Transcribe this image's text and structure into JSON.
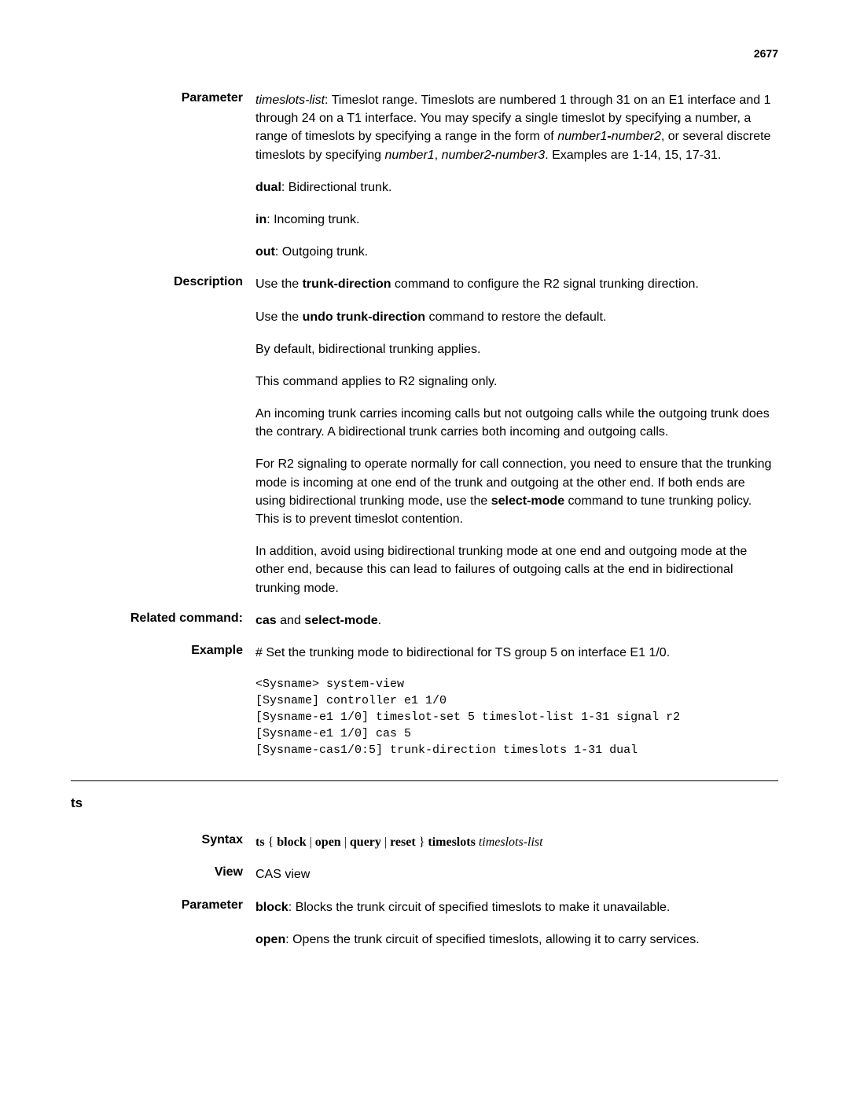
{
  "pageNumber": "2677",
  "sections": [
    {
      "label": "Parameter",
      "paragraphs": [
        {
          "runs": [
            {
              "t": "timeslots-list",
              "i": true
            },
            {
              "t": ": Timeslot range. Timeslots are numbered 1 through 31 on an E1 interface and 1 through 24 on a T1 interface. You may specify a single timeslot by specifying a number, a range of timeslots by specifying a range in the form of "
            },
            {
              "t": "number1",
              "i": true
            },
            {
              "t": "-",
              "b": true
            },
            {
              "t": "number2",
              "i": true
            },
            {
              "t": ", or several discrete timeslots by specifying "
            },
            {
              "t": "number1",
              "i": true
            },
            {
              "t": ", "
            },
            {
              "t": "number2",
              "i": true
            },
            {
              "t": "-",
              "b": true
            },
            {
              "t": "number3",
              "i": true
            },
            {
              "t": ". Examples are 1-14, 15, 17-31."
            }
          ]
        },
        {
          "runs": [
            {
              "t": "dual",
              "b": true
            },
            {
              "t": ": Bidirectional trunk."
            }
          ]
        },
        {
          "runs": [
            {
              "t": "in",
              "b": true
            },
            {
              "t": ": Incoming trunk."
            }
          ]
        },
        {
          "runs": [
            {
              "t": "out",
              "b": true
            },
            {
              "t": ": Outgoing trunk."
            }
          ]
        }
      ]
    },
    {
      "label": "Description",
      "paragraphs": [
        {
          "runs": [
            {
              "t": "Use the "
            },
            {
              "t": "trunk-direction",
              "b": true
            },
            {
              "t": " command to configure the R2 signal trunking direction."
            }
          ]
        },
        {
          "runs": [
            {
              "t": "Use the "
            },
            {
              "t": "undo trunk-direction",
              "b": true
            },
            {
              "t": " command to restore the default."
            }
          ]
        },
        {
          "runs": [
            {
              "t": "By default, bidirectional trunking applies."
            }
          ]
        },
        {
          "runs": [
            {
              "t": "This command applies to R2 signaling only."
            }
          ]
        },
        {
          "runs": [
            {
              "t": "An incoming trunk carries incoming calls but not outgoing calls while the outgoing trunk does the contrary. A bidirectional trunk carries both incoming and outgoing calls."
            }
          ]
        },
        {
          "runs": [
            {
              "t": "For R2 signaling to operate normally for call connection, you need to ensure that the trunking mode is incoming at one end of the trunk and outgoing at the other end. If both ends are using bidirectional trunking mode, use the "
            },
            {
              "t": "select-mode",
              "b": true
            },
            {
              "t": " command to tune trunking policy. This is to prevent timeslot contention."
            }
          ]
        },
        {
          "runs": [
            {
              "t": "In addition, avoid using bidirectional trunking mode at one end and outgoing mode at the other end, because this can lead to failures of outgoing calls at the end in bidirectional trunking mode."
            }
          ]
        }
      ]
    },
    {
      "label": "Related command:",
      "paragraphs": [
        {
          "runs": [
            {
              "t": "cas",
              "b": true
            },
            {
              "t": " and "
            },
            {
              "t": "select-mode",
              "b": true
            },
            {
              "t": "."
            }
          ]
        }
      ]
    },
    {
      "label": "Example",
      "paragraphs": [
        {
          "runs": [
            {
              "t": "# Set the trunking mode to bidirectional for TS group 5 on interface E1 1/0."
            }
          ]
        }
      ],
      "code": "<Sysname> system-view\n[Sysname] controller e1 1/0\n[Sysname-e1 1/0] timeslot-set 5 timeslot-list 1-31 signal r2\n[Sysname-e1 1/0] cas 5\n[Sysname-cas1/0:5] trunk-direction timeslots 1-31 dual"
    }
  ],
  "hr": true,
  "commandTitle": "ts",
  "sections2": [
    {
      "label": "Syntax",
      "paragraphs": [
        {
          "serif": true,
          "runs": [
            {
              "t": "ts",
              "b": true
            },
            {
              "t": " { "
            },
            {
              "t": "block",
              "b": true
            },
            {
              "t": " | "
            },
            {
              "t": "open",
              "b": true
            },
            {
              "t": " | "
            },
            {
              "t": "query",
              "b": true
            },
            {
              "t": " | "
            },
            {
              "t": "reset",
              "b": true
            },
            {
              "t": " } "
            },
            {
              "t": "timeslots",
              "b": true
            },
            {
              "t": " "
            },
            {
              "t": "timeslots-list",
              "i": true
            }
          ]
        }
      ]
    },
    {
      "label": "View",
      "paragraphs": [
        {
          "runs": [
            {
              "t": "CAS view"
            }
          ]
        }
      ]
    },
    {
      "label": "Parameter",
      "paragraphs": [
        {
          "runs": [
            {
              "t": "block",
              "b": true
            },
            {
              "t": ": Blocks the trunk circuit of specified timeslots to make it unavailable."
            }
          ]
        },
        {
          "runs": [
            {
              "t": "open",
              "b": true
            },
            {
              "t": ": Opens the trunk circuit of specified timeslots, allowing it to carry services."
            }
          ]
        }
      ]
    }
  ]
}
